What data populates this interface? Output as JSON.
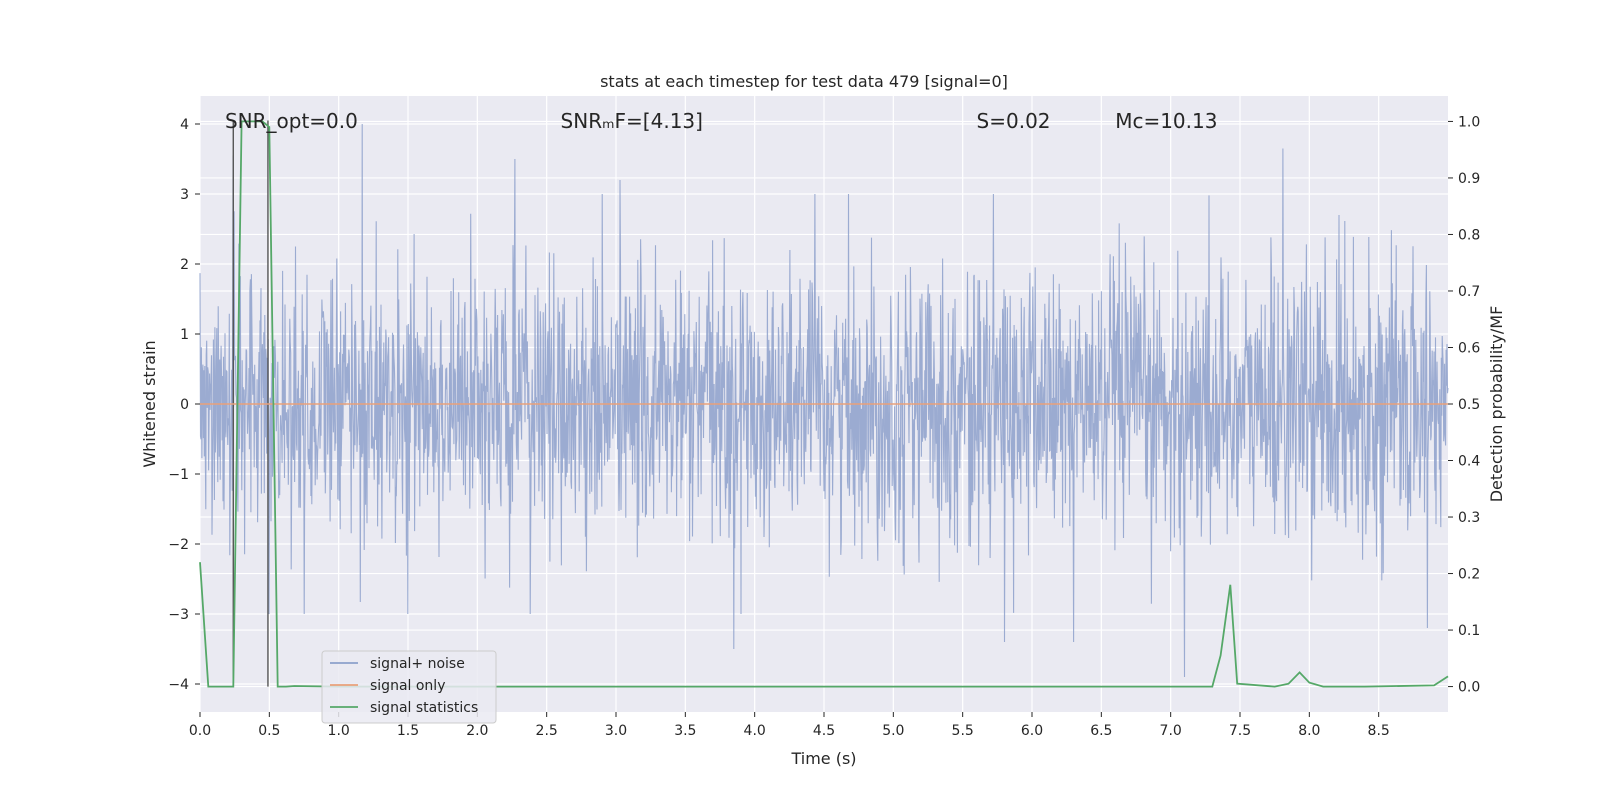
{
  "chart_data": {
    "type": "line",
    "title": "stats at each timestep for test data 479 [signal=0]",
    "xlabel": "Time (s)",
    "ylabel_left": "Whitened strain",
    "ylabel_right": "Detection probability/MF",
    "xlim": [
      0.0,
      9.0
    ],
    "ylim_left": [
      -4.4,
      4.4
    ],
    "ylim_right": [
      -0.045,
      1.045
    ],
    "xticks": [
      0.0,
      0.5,
      1.0,
      1.5,
      2.0,
      2.5,
      3.0,
      3.5,
      4.0,
      4.5,
      5.0,
      5.5,
      6.0,
      6.5,
      7.0,
      7.5,
      8.0,
      8.5
    ],
    "xtick_labels": [
      "0.0",
      "0.5",
      "1.0",
      "1.5",
      "2.0",
      "2.5",
      "3.0",
      "3.5",
      "4.0",
      "4.5",
      "5.0",
      "5.5",
      "6.0",
      "6.5",
      "7.0",
      "7.5",
      "8.0",
      "8.5"
    ],
    "yticks_left": [
      4,
      3,
      2,
      1,
      0,
      -1,
      -2,
      -3,
      -4
    ],
    "ytick_labels_left": [
      "4",
      "3",
      "2",
      "1",
      "0",
      "−1",
      "−2",
      "−3",
      "−4"
    ],
    "yticks_right": [
      1.0,
      0.9,
      0.8,
      0.7,
      0.6,
      0.5,
      0.4,
      0.3,
      0.2,
      0.1,
      0.0
    ],
    "ytick_labels_right": [
      "1.0",
      "0.9",
      "0.8",
      "0.7",
      "0.6",
      "0.5",
      "0.4",
      "0.3",
      "0.2",
      "0.1",
      "0.0"
    ],
    "annotations": [
      {
        "name": "snr-opt-annotation",
        "text": "SNR_opt=0.0",
        "x": 0.18,
        "y": 4.0
      },
      {
        "name": "snr-mf-annotation",
        "text": "SNRₘF=[4.13]",
        "x": 2.6,
        "y": 4.0
      },
      {
        "name": "s-annotation",
        "text": "S=0.02",
        "x": 5.6,
        "y": 4.0
      },
      {
        "name": "mc-annotation",
        "text": "Mᴄ=10.13",
        "x": 6.6,
        "y": 4.0
      }
    ],
    "vlines": [
      0.24,
      0.49
    ],
    "legend": {
      "location": "lower-left",
      "entries": [
        {
          "label": "signal+ noise",
          "color": "#8da0cb"
        },
        {
          "label": "signal only",
          "color": "#e8a07a"
        },
        {
          "label": "signal statistics",
          "color": "#55a868"
        }
      ]
    },
    "series": [
      {
        "name": "signal+ noise",
        "axis": "left",
        "color": "#8da0cb",
        "kind": "noise",
        "std": 0.95,
        "peak_values": [
          {
            "x": 0.24,
            "y": 3.55
          },
          {
            "x": 0.5,
            "y": -3.0
          },
          {
            "x": 0.75,
            "y": -3.0
          },
          {
            "x": 1.17,
            "y": 4.0
          },
          {
            "x": 1.5,
            "y": -3.0
          },
          {
            "x": 2.27,
            "y": 3.5
          },
          {
            "x": 3.03,
            "y": 3.2
          },
          {
            "x": 3.85,
            "y": -3.5
          },
          {
            "x": 5.8,
            "y": -3.4
          },
          {
            "x": 6.3,
            "y": -3.4
          },
          {
            "x": 7.1,
            "y": -3.9
          },
          {
            "x": 7.81,
            "y": 3.65
          },
          {
            "x": 8.85,
            "y": -3.2
          }
        ]
      },
      {
        "name": "signal only",
        "axis": "left",
        "color": "#e8a07a",
        "x": [
          0.0,
          9.0
        ],
        "y": [
          0.0,
          0.0
        ]
      },
      {
        "name": "signal statistics",
        "axis": "right",
        "color": "#55a868",
        "x": [
          0.0,
          0.06,
          0.12,
          0.24,
          0.3,
          0.45,
          0.5,
          0.56,
          0.62,
          0.68,
          1.0,
          7.3,
          7.36,
          7.43,
          7.48,
          7.75,
          7.85,
          7.93,
          8.0,
          8.1,
          8.4,
          8.9,
          9.0
        ],
        "y": [
          0.22,
          0.0,
          0.0,
          0.0,
          1.0,
          1.0,
          0.99,
          0.0,
          0.0,
          0.001,
          0.0,
          0.0,
          0.055,
          0.18,
          0.005,
          0.0,
          0.005,
          0.025,
          0.007,
          0.0,
          0.0,
          0.002,
          0.018
        ]
      }
    ]
  }
}
